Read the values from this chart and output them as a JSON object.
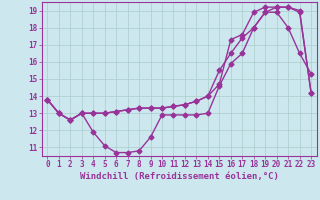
{
  "background_color": "#cce8ee",
  "grid_color": "#aacccc",
  "line_color": "#993399",
  "marker": "D",
  "markersize": 2.5,
  "linewidth": 1.0,
  "xlabel": "Windchill (Refroidissement éolien,°C)",
  "xlabel_fontsize": 6.5,
  "tick_fontsize": 5.5,
  "xlim": [
    -0.5,
    23.5
  ],
  "ylim": [
    10.5,
    19.5
  ],
  "yticks": [
    11,
    12,
    13,
    14,
    15,
    16,
    17,
    18,
    19
  ],
  "xticks": [
    0,
    1,
    2,
    3,
    4,
    5,
    6,
    7,
    8,
    9,
    10,
    11,
    12,
    13,
    14,
    15,
    16,
    17,
    18,
    19,
    20,
    21,
    22,
    23
  ],
  "series": [
    [
      13.8,
      13.0,
      12.6,
      13.0,
      11.9,
      11.1,
      10.7,
      10.7,
      10.8,
      11.6,
      12.9,
      12.9,
      12.9,
      12.9,
      13.0,
      14.6,
      15.9,
      16.5,
      18.0,
      18.9,
      18.9,
      18.0,
      16.5,
      15.3
    ],
    [
      13.8,
      13.0,
      12.6,
      13.0,
      13.0,
      13.0,
      13.1,
      13.2,
      13.3,
      13.3,
      13.3,
      13.4,
      13.5,
      13.7,
      14.0,
      14.7,
      17.3,
      17.6,
      18.9,
      19.2,
      19.2,
      19.2,
      18.9,
      14.2
    ],
    [
      13.8,
      13.0,
      12.6,
      13.0,
      13.0,
      13.0,
      13.1,
      13.2,
      13.3,
      13.3,
      13.3,
      13.4,
      13.5,
      13.7,
      14.0,
      15.5,
      16.5,
      17.4,
      18.0,
      18.9,
      19.2,
      19.2,
      19.0,
      14.2
    ]
  ]
}
